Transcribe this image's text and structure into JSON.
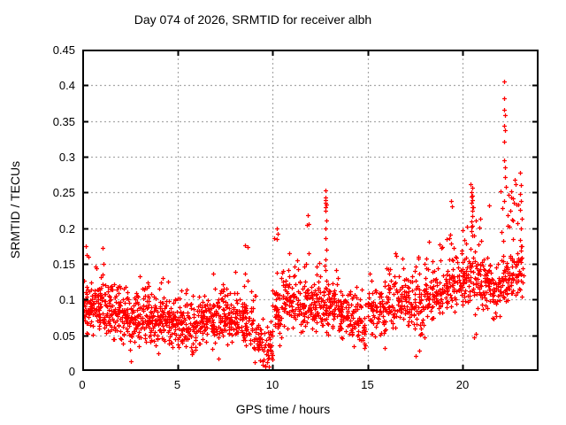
{
  "chart_data": {
    "type": "scatter",
    "title": "Day 074 of 2026, SRMTID for receiver albh",
    "xlabel": "GPS time / hours",
    "ylabel": "SRMTID / TECUs",
    "xlim": [
      0,
      24
    ],
    "ylim": [
      0,
      0.45
    ],
    "xticks": [
      {
        "v": 0,
        "label": "0"
      },
      {
        "v": 5,
        "label": "5"
      },
      {
        "v": 10,
        "label": "10"
      },
      {
        "v": 15,
        "label": "15"
      },
      {
        "v": 20,
        "label": "20"
      }
    ],
    "yticks": [
      {
        "v": 0.0,
        "label": "0"
      },
      {
        "v": 0.05,
        "label": "0.05"
      },
      {
        "v": 0.1,
        "label": "0.1"
      },
      {
        "v": 0.15,
        "label": "0.15"
      },
      {
        "v": 0.2,
        "label": "0.2"
      },
      {
        "v": 0.25,
        "label": "0.25"
      },
      {
        "v": 0.3,
        "label": "0.3"
      },
      {
        "v": 0.35,
        "label": "0.35"
      },
      {
        "v": 0.4,
        "label": "0.4"
      },
      {
        "v": 0.45,
        "label": "0.45"
      }
    ],
    "grid": true,
    "legend": null,
    "marker": {
      "shape": "plus",
      "color": "#ff0000",
      "size": 5
    },
    "colors": {
      "axis": "#000000",
      "grid": "#a8a8a8",
      "text": "#000000"
    },
    "series": [
      {
        "name": "SRMTID",
        "bins_format": "[t_start_hours, t_end_hours, n_points, y_min, y_max, y_mode]",
        "density_bins": [
          [
            0.0,
            0.5,
            55,
            0.05,
            0.16,
            0.085
          ],
          [
            0.5,
            1.0,
            55,
            0.05,
            0.165,
            0.09
          ],
          [
            1.0,
            1.5,
            52,
            0.048,
            0.16,
            0.085
          ],
          [
            1.5,
            2.0,
            50,
            0.04,
            0.14,
            0.08
          ],
          [
            2.0,
            2.5,
            50,
            0.035,
            0.13,
            0.075
          ],
          [
            2.5,
            3.0,
            48,
            0.014,
            0.135,
            0.07
          ],
          [
            3.0,
            3.5,
            50,
            0.04,
            0.15,
            0.078
          ],
          [
            3.5,
            4.0,
            48,
            0.023,
            0.13,
            0.07
          ],
          [
            4.0,
            4.5,
            48,
            0.04,
            0.14,
            0.072
          ],
          [
            4.5,
            5.0,
            48,
            0.03,
            0.12,
            0.065
          ],
          [
            5.0,
            5.5,
            48,
            0.026,
            0.125,
            0.065
          ],
          [
            5.5,
            6.0,
            48,
            0.025,
            0.12,
            0.06
          ],
          [
            6.0,
            6.5,
            48,
            0.03,
            0.13,
            0.065
          ],
          [
            6.5,
            7.0,
            48,
            0.017,
            0.14,
            0.068
          ],
          [
            7.0,
            7.5,
            48,
            0.03,
            0.15,
            0.075
          ],
          [
            7.5,
            8.0,
            46,
            0.03,
            0.135,
            0.07
          ],
          [
            8.0,
            8.5,
            45,
            0.03,
            0.155,
            0.072
          ],
          [
            8.5,
            9.0,
            45,
            0.025,
            0.19,
            0.068
          ],
          [
            9.0,
            9.5,
            40,
            0.01,
            0.12,
            0.045
          ],
          [
            9.5,
            10.0,
            38,
            0.006,
            0.08,
            0.028
          ],
          [
            10.0,
            10.5,
            45,
            0.02,
            0.2,
            0.08
          ],
          [
            10.5,
            11.0,
            45,
            0.05,
            0.18,
            0.1
          ],
          [
            11.0,
            11.5,
            45,
            0.048,
            0.17,
            0.09
          ],
          [
            11.5,
            12.0,
            45,
            0.04,
            0.215,
            0.09
          ],
          [
            12.0,
            12.5,
            45,
            0.05,
            0.185,
            0.092
          ],
          [
            12.5,
            13.0,
            45,
            0.04,
            0.2,
            0.09
          ],
          [
            13.0,
            13.5,
            45,
            0.05,
            0.17,
            0.09
          ],
          [
            13.5,
            14.0,
            44,
            0.04,
            0.15,
            0.08
          ],
          [
            14.0,
            14.5,
            40,
            0.034,
            0.13,
            0.07
          ],
          [
            14.5,
            15.0,
            34,
            0.03,
            0.12,
            0.062
          ],
          [
            15.0,
            15.5,
            40,
            0.048,
            0.15,
            0.08
          ],
          [
            15.5,
            16.0,
            42,
            0.03,
            0.16,
            0.082
          ],
          [
            16.0,
            16.5,
            42,
            0.05,
            0.175,
            0.09
          ],
          [
            16.5,
            17.0,
            42,
            0.055,
            0.19,
            0.1
          ],
          [
            17.0,
            17.5,
            40,
            0.04,
            0.18,
            0.092
          ],
          [
            17.5,
            18.0,
            40,
            0.02,
            0.19,
            0.09
          ],
          [
            18.0,
            18.5,
            42,
            0.036,
            0.2,
            0.1
          ],
          [
            18.5,
            19.0,
            42,
            0.065,
            0.21,
            0.11
          ],
          [
            19.0,
            19.5,
            42,
            0.07,
            0.235,
            0.118
          ],
          [
            19.5,
            20.0,
            42,
            0.078,
            0.22,
            0.12
          ],
          [
            20.0,
            20.5,
            46,
            0.08,
            0.24,
            0.128
          ],
          [
            20.5,
            21.0,
            46,
            0.046,
            0.26,
            0.13
          ],
          [
            21.0,
            21.5,
            45,
            0.078,
            0.22,
            0.128
          ],
          [
            21.5,
            22.0,
            40,
            0.058,
            0.18,
            0.11
          ],
          [
            22.0,
            22.5,
            46,
            0.08,
            0.28,
            0.125
          ],
          [
            22.5,
            23.0,
            44,
            0.09,
            0.285,
            0.135
          ],
          [
            23.0,
            23.2,
            12,
            0.1,
            0.28,
            0.15
          ]
        ],
        "highlight_points": [
          [
            0.18,
            0.175
          ],
          [
            0.22,
            0.162
          ],
          [
            1.05,
            0.172
          ],
          [
            2.56,
            0.014
          ],
          [
            5.76,
            0.024
          ],
          [
            7.16,
            0.017
          ],
          [
            9.55,
            0.016
          ],
          [
            9.62,
            0.008
          ],
          [
            9.7,
            0.012
          ],
          [
            10.22,
            0.185
          ],
          [
            10.25,
            0.2
          ],
          [
            10.3,
            0.192
          ],
          [
            11.88,
            0.218
          ],
          [
            11.93,
            0.206
          ],
          [
            12.78,
            0.236
          ],
          [
            12.79,
            0.253
          ],
          [
            12.79,
            0.225
          ],
          [
            12.8,
            0.243
          ],
          [
            12.8,
            0.229
          ],
          [
            12.8,
            0.186
          ],
          [
            12.81,
            0.239
          ],
          [
            12.81,
            0.199
          ],
          [
            12.82,
            0.233
          ],
          [
            12.82,
            0.17
          ],
          [
            12.83,
            0.211
          ],
          [
            12.78,
            0.156
          ],
          [
            12.81,
            0.141
          ],
          [
            12.84,
            0.127
          ],
          [
            12.8,
            0.117
          ],
          [
            14.3,
            0.035
          ],
          [
            15.92,
            0.032
          ],
          [
            17.55,
            0.021
          ],
          [
            17.72,
            0.028
          ],
          [
            19.38,
            0.238
          ],
          [
            19.46,
            0.23
          ],
          [
            20.44,
            0.262
          ],
          [
            20.5,
            0.257
          ],
          [
            20.47,
            0.251
          ],
          [
            20.52,
            0.246
          ],
          [
            20.46,
            0.244
          ],
          [
            20.5,
            0.239
          ],
          [
            20.45,
            0.235
          ],
          [
            20.51,
            0.229
          ],
          [
            20.49,
            0.224
          ],
          [
            20.53,
            0.217
          ],
          [
            20.47,
            0.209
          ],
          [
            20.5,
            0.203
          ],
          [
            20.45,
            0.196
          ],
          [
            20.52,
            0.19
          ],
          [
            20.62,
            0.047
          ],
          [
            20.7,
            0.052
          ],
          [
            21.4,
            0.232
          ],
          [
            22.18,
            0.405
          ],
          [
            22.2,
            0.382
          ],
          [
            22.19,
            0.366
          ],
          [
            22.21,
            0.358
          ],
          [
            22.18,
            0.343
          ],
          [
            22.22,
            0.337
          ],
          [
            22.2,
            0.321
          ],
          [
            22.17,
            0.295
          ],
          [
            22.21,
            0.285
          ],
          [
            22.24,
            0.272
          ],
          [
            22.3,
            0.258
          ],
          [
            22.35,
            0.218
          ],
          [
            22.4,
            0.247
          ],
          [
            22.45,
            0.202
          ],
          [
            22.5,
            0.224
          ],
          [
            22.55,
            0.252
          ],
          [
            22.6,
            0.212
          ],
          [
            22.65,
            0.242
          ],
          [
            22.75,
            0.268
          ],
          [
            22.78,
            0.262
          ],
          [
            22.85,
            0.233
          ],
          [
            22.9,
            0.207
          ],
          [
            22.1,
            0.228
          ],
          [
            22.2,
            0.238
          ],
          [
            23.0,
            0.248
          ],
          [
            23.01,
            0.138
          ],
          [
            23.02,
            0.278
          ],
          [
            23.02,
            0.184
          ],
          [
            23.04,
            0.226
          ],
          [
            23.04,
            0.114
          ],
          [
            23.05,
            0.199
          ],
          [
            23.05,
            0.152
          ],
          [
            23.06,
            0.26
          ],
          [
            23.07,
            0.126
          ],
          [
            23.08,
            0.238
          ],
          [
            23.09,
            0.168
          ],
          [
            23.1,
            0.213
          ],
          [
            23.1,
            0.104
          ]
        ]
      }
    ]
  }
}
